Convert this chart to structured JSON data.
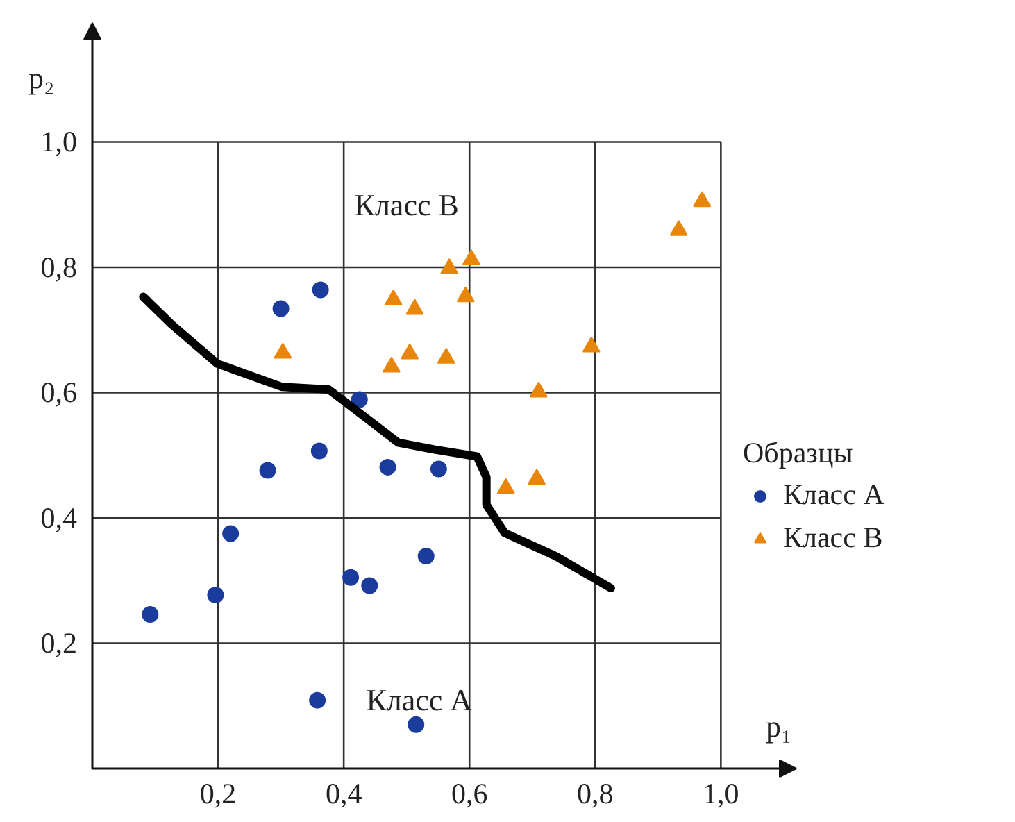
{
  "chart_data": {
    "type": "scatter",
    "xlabel": "p₁",
    "ylabel": "p₂",
    "legend_title": "Образцы",
    "xlim": [
      0,
      1.12
    ],
    "ylim": [
      0,
      1.19
    ],
    "xticks": [
      {
        "value": 0.2,
        "label": "0,2"
      },
      {
        "value": 0.4,
        "label": "0,4"
      },
      {
        "value": 0.6,
        "label": "0,6"
      },
      {
        "value": 0.8,
        "label": "0,8"
      },
      {
        "value": 1.0,
        "label": "1,0"
      }
    ],
    "yticks": [
      {
        "value": 0.2,
        "label": "0,2"
      },
      {
        "value": 0.4,
        "label": "0,4"
      },
      {
        "value": 0.6,
        "label": "0,6"
      },
      {
        "value": 0.8,
        "label": "0,8"
      },
      {
        "value": 1.0,
        "label": "1,0"
      }
    ],
    "grid": true,
    "legend": "right",
    "annotations": [
      "Класс В",
      "Класс А"
    ],
    "series": [
      {
        "name": "Класс А",
        "marker": "circle",
        "color": "#1b3c9c",
        "x": [
          0.092,
          0.196,
          0.22,
          0.279,
          0.361,
          0.3,
          0.363,
          0.425,
          0.47,
          0.551,
          0.531,
          0.411,
          0.441,
          0.358,
          0.515
        ],
        "values": [
          0.246,
          0.277,
          0.375,
          0.476,
          0.507,
          0.734,
          0.764,
          0.589,
          0.481,
          0.478,
          0.339,
          0.305,
          0.292,
          0.109,
          0.07
        ]
      },
      {
        "name": "Класс В",
        "marker": "triangle",
        "color": "#e8860c",
        "x": [
          0.303,
          0.479,
          0.513,
          0.476,
          0.505,
          0.563,
          0.568,
          0.603,
          0.594,
          0.794,
          0.71,
          0.658,
          0.707,
          0.933,
          0.97
        ],
        "values": [
          0.663,
          0.748,
          0.733,
          0.641,
          0.662,
          0.655,
          0.798,
          0.812,
          0.753,
          0.673,
          0.601,
          0.447,
          0.462,
          0.859,
          0.905
        ]
      },
      {
        "type": "line",
        "line_style": "solid",
        "color": "#000000",
        "x": [
          0.081,
          0.126,
          0.199,
          0.302,
          0.376,
          0.405,
          0.487,
          0.545,
          0.612,
          0.627,
          0.627,
          0.656,
          0.737,
          0.825
        ],
        "values": [
          0.753,
          0.709,
          0.646,
          0.609,
          0.605,
          0.583,
          0.52,
          0.509,
          0.498,
          0.465,
          0.421,
          0.376,
          0.339,
          0.288
        ]
      }
    ]
  }
}
